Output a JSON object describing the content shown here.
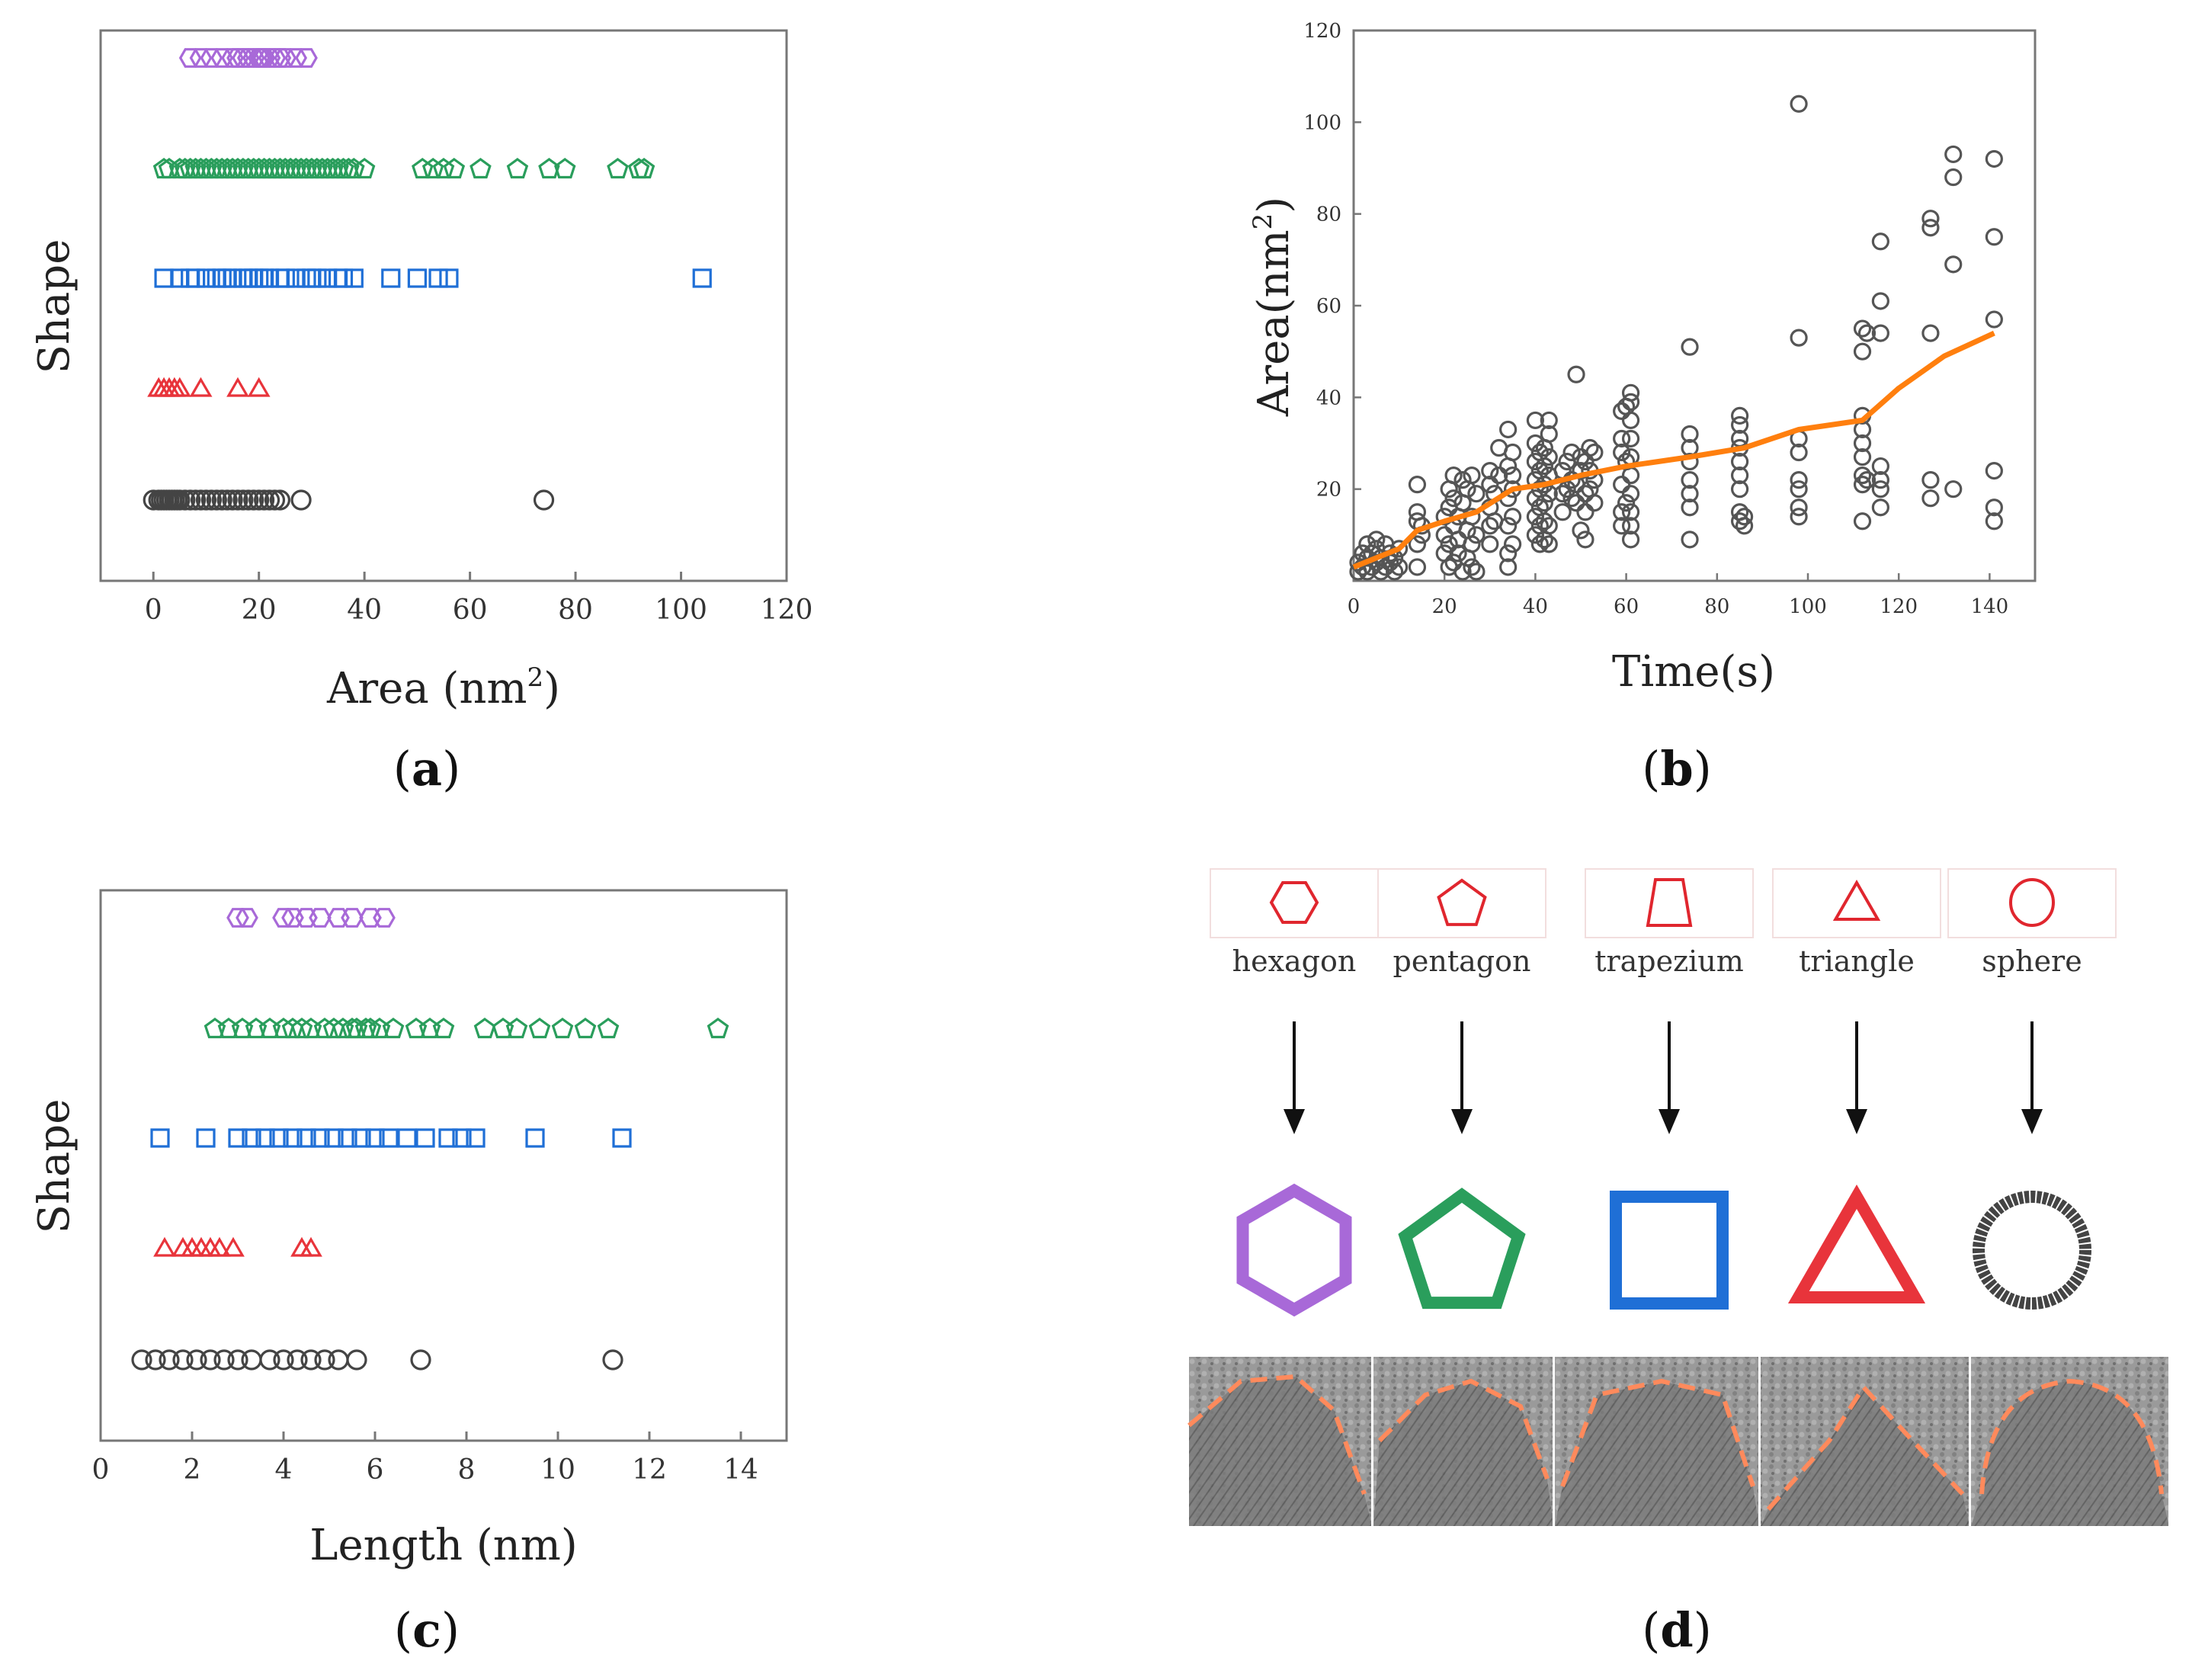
{
  "colors": {
    "hexagon": "#a869d8",
    "pentagon": "#2a9e5c",
    "square": "#1f6fd6",
    "triangle": "#e8343b",
    "sphere": "#444444",
    "trend": "#ff7f0e",
    "diagram_outline": "#e0262e"
  },
  "panel_labels": {
    "a": "a",
    "b": "b",
    "c": "c",
    "d": "d"
  },
  "chart_data": [
    {
      "id": "a",
      "type": "scatter",
      "title": "",
      "xlabel": "Area (nm",
      "xlabel_sup": "2",
      "xlabel_end": ")",
      "ylabel": "Shape",
      "xlim": [
        -10,
        120
      ],
      "xticks": [
        "0",
        "20",
        "40",
        "60",
        "80",
        "100",
        "120"
      ],
      "series": [
        {
          "name": "hexagon",
          "marker": "hexagon",
          "values": [
            7,
            9,
            11,
            13,
            15,
            16,
            17,
            18,
            19,
            20,
            20.5,
            21,
            22,
            23,
            24,
            25,
            27,
            29
          ]
        },
        {
          "name": "pentagon",
          "marker": "pentagon",
          "values": [
            2,
            3,
            5,
            6,
            7,
            8,
            9,
            10,
            11,
            12,
            13,
            14,
            15,
            16,
            17,
            18,
            19,
            20,
            21,
            22,
            23,
            24,
            25,
            26,
            27,
            28,
            29,
            30,
            31,
            32,
            33,
            34,
            35,
            36,
            37,
            38,
            40,
            51,
            53,
            55,
            57,
            62,
            69,
            75,
            78,
            88,
            92,
            93
          ]
        },
        {
          "name": "square",
          "marker": "square",
          "values": [
            2,
            5,
            7,
            8,
            10,
            12,
            13,
            14,
            15,
            17,
            18,
            19,
            20,
            21,
            22,
            24,
            25,
            27,
            29,
            30,
            31,
            33,
            35,
            36,
            38,
            45,
            50,
            54,
            56,
            104
          ]
        },
        {
          "name": "triangle",
          "marker": "triangle",
          "values": [
            1,
            2,
            3,
            4,
            5,
            9,
            16,
            20
          ]
        },
        {
          "name": "sphere",
          "marker": "circle",
          "values": [
            0,
            1,
            1.5,
            2,
            2.5,
            3,
            3.5,
            4,
            4.5,
            5,
            6,
            7,
            8,
            9,
            10,
            11,
            12,
            13,
            14,
            15,
            16,
            17,
            18,
            19,
            20,
            21,
            22,
            23,
            24,
            28,
            74
          ]
        }
      ]
    },
    {
      "id": "b",
      "type": "scatter",
      "title": "",
      "xlabel": "Time(s)",
      "ylabel": "Area(nm",
      "ylabel_sup": "2",
      "ylabel_end": ")",
      "xlim": [
        0,
        150
      ],
      "ylim": [
        0,
        120
      ],
      "xticks": [
        "0",
        "20",
        "40",
        "60",
        "80",
        "100",
        "120",
        "140"
      ],
      "yticks": [
        "20",
        "40",
        "60",
        "80",
        "100",
        "120"
      ],
      "points": [
        [
          1,
          2
        ],
        [
          1,
          4
        ],
        [
          2,
          3
        ],
        [
          2,
          6
        ],
        [
          3,
          2
        ],
        [
          3,
          5
        ],
        [
          3,
          8
        ],
        [
          4,
          3
        ],
        [
          4,
          6
        ],
        [
          5,
          4
        ],
        [
          5,
          7
        ],
        [
          5,
          9
        ],
        [
          6,
          2
        ],
        [
          6,
          5
        ],
        [
          7,
          3
        ],
        [
          7,
          8
        ],
        [
          8,
          4
        ],
        [
          8,
          6
        ],
        [
          9,
          2
        ],
        [
          9,
          5
        ],
        [
          10,
          3
        ],
        [
          10,
          7
        ],
        [
          14,
          3
        ],
        [
          14,
          8
        ],
        [
          14,
          13
        ],
        [
          14,
          15
        ],
        [
          14,
          21
        ],
        [
          15,
          10
        ],
        [
          15,
          12
        ],
        [
          20,
          6
        ],
        [
          20,
          10
        ],
        [
          20,
          14
        ],
        [
          21,
          3
        ],
        [
          21,
          8
        ],
        [
          21,
          16
        ],
        [
          21,
          20
        ],
        [
          22,
          4
        ],
        [
          22,
          12
        ],
        [
          22,
          18
        ],
        [
          22,
          23
        ],
        [
          23,
          6
        ],
        [
          23,
          9
        ],
        [
          23,
          14
        ],
        [
          24,
          2
        ],
        [
          24,
          17
        ],
        [
          24,
          22
        ],
        [
          25,
          5
        ],
        [
          25,
          11
        ],
        [
          25,
          20
        ],
        [
          26,
          3
        ],
        [
          26,
          8
        ],
        [
          26,
          14
        ],
        [
          26,
          23
        ],
        [
          27,
          2
        ],
        [
          27,
          10
        ],
        [
          27,
          19
        ],
        [
          30,
          8
        ],
        [
          30,
          12
        ],
        [
          30,
          16
        ],
        [
          30,
          21
        ],
        [
          30,
          24
        ],
        [
          31,
          13
        ],
        [
          31,
          19
        ],
        [
          32,
          23
        ],
        [
          32,
          29
        ],
        [
          34,
          3
        ],
        [
          34,
          6
        ],
        [
          34,
          12
        ],
        [
          34,
          18
        ],
        [
          34,
          25
        ],
        [
          34,
          33
        ],
        [
          35,
          8
        ],
        [
          35,
          14
        ],
        [
          35,
          20
        ],
        [
          35,
          23
        ],
        [
          35,
          28
        ],
        [
          40,
          10
        ],
        [
          40,
          14
        ],
        [
          40,
          18
        ],
        [
          40,
          22
        ],
        [
          40,
          26
        ],
        [
          40,
          30
        ],
        [
          40,
          35
        ],
        [
          41,
          8
        ],
        [
          41,
          12
        ],
        [
          41,
          16
        ],
        [
          41,
          20
        ],
        [
          41,
          24
        ],
        [
          41,
          28
        ],
        [
          42,
          9
        ],
        [
          42,
          13
        ],
        [
          42,
          17
        ],
        [
          42,
          21
        ],
        [
          42,
          25
        ],
        [
          42,
          29
        ],
        [
          43,
          8
        ],
        [
          43,
          12
        ],
        [
          43,
          19
        ],
        [
          43,
          23
        ],
        [
          43,
          27
        ],
        [
          43,
          32
        ],
        [
          43,
          35
        ],
        [
          46,
          15
        ],
        [
          46,
          19
        ],
        [
          46,
          24
        ],
        [
          47,
          20
        ],
        [
          47,
          26
        ],
        [
          48,
          18
        ],
        [
          48,
          22
        ],
        [
          48,
          28
        ],
        [
          49,
          17
        ],
        [
          49,
          21
        ],
        [
          49,
          45
        ],
        [
          50,
          11
        ],
        [
          50,
          24
        ],
        [
          50,
          27
        ],
        [
          51,
          9
        ],
        [
          51,
          15
        ],
        [
          51,
          19
        ],
        [
          51,
          26
        ],
        [
          52,
          20
        ],
        [
          52,
          24
        ],
        [
          52,
          29
        ],
        [
          53,
          17
        ],
        [
          53,
          22
        ],
        [
          53,
          28
        ],
        [
          59,
          12
        ],
        [
          59,
          15
        ],
        [
          59,
          21
        ],
        [
          59,
          28
        ],
        [
          59,
          31
        ],
        [
          59,
          37
        ],
        [
          60,
          17
        ],
        [
          60,
          26
        ],
        [
          60,
          38
        ],
        [
          61,
          9
        ],
        [
          61,
          12
        ],
        [
          61,
          15
        ],
        [
          61,
          19
        ],
        [
          61,
          23
        ],
        [
          61,
          27
        ],
        [
          61,
          31
        ],
        [
          61,
          35
        ],
        [
          61,
          39
        ],
        [
          61,
          41
        ],
        [
          74,
          9
        ],
        [
          74,
          16
        ],
        [
          74,
          19
        ],
        [
          74,
          22
        ],
        [
          74,
          26
        ],
        [
          74,
          29
        ],
        [
          74,
          32
        ],
        [
          74,
          51
        ],
        [
          85,
          13
        ],
        [
          85,
          15
        ],
        [
          85,
          20
        ],
        [
          85,
          23
        ],
        [
          85,
          26
        ],
        [
          85,
          29
        ],
        [
          85,
          31
        ],
        [
          85,
          34
        ],
        [
          85,
          36
        ],
        [
          86,
          12
        ],
        [
          86,
          14
        ],
        [
          98,
          14
        ],
        [
          98,
          16
        ],
        [
          98,
          20
        ],
        [
          98,
          22
        ],
        [
          98,
          28
        ],
        [
          98,
          31
        ],
        [
          98,
          53
        ],
        [
          98,
          104
        ],
        [
          112,
          13
        ],
        [
          112,
          21
        ],
        [
          112,
          23
        ],
        [
          112,
          27
        ],
        [
          112,
          30
        ],
        [
          112,
          33
        ],
        [
          112,
          36
        ],
        [
          112,
          50
        ],
        [
          112,
          55
        ],
        [
          113,
          22
        ],
        [
          113,
          54
        ],
        [
          116,
          16
        ],
        [
          116,
          20
        ],
        [
          116,
          22
        ],
        [
          116,
          25
        ],
        [
          116,
          54
        ],
        [
          116,
          61
        ],
        [
          116,
          74
        ],
        [
          127,
          18
        ],
        [
          127,
          22
        ],
        [
          127,
          54
        ],
        [
          127,
          77
        ],
        [
          127,
          79
        ],
        [
          132,
          20
        ],
        [
          132,
          69
        ],
        [
          132,
          88
        ],
        [
          132,
          93
        ],
        [
          141,
          13
        ],
        [
          141,
          16
        ],
        [
          141,
          24
        ],
        [
          141,
          57
        ],
        [
          141,
          75
        ],
        [
          141,
          92
        ]
      ],
      "trend": [
        [
          0,
          3
        ],
        [
          5,
          5
        ],
        [
          10,
          7
        ],
        [
          14,
          11
        ],
        [
          20,
          13
        ],
        [
          27,
          15
        ],
        [
          35,
          20
        ],
        [
          42,
          21
        ],
        [
          50,
          23
        ],
        [
          60,
          25
        ],
        [
          74,
          27
        ],
        [
          86,
          29
        ],
        [
          98,
          33
        ],
        [
          112,
          35
        ],
        [
          120,
          42
        ],
        [
          130,
          49
        ],
        [
          141,
          54
        ]
      ]
    },
    {
      "id": "c",
      "type": "scatter",
      "title": "",
      "xlabel": "Length (nm)",
      "ylabel": "Shape",
      "xlim": [
        0,
        15
      ],
      "xticks": [
        "0",
        "2",
        "4",
        "6",
        "8",
        "10",
        "12",
        "14"
      ],
      "series": [
        {
          "name": "hexagon",
          "marker": "hexagon",
          "values": [
            3.0,
            3.2,
            4.0,
            4.2,
            4.5,
            4.8,
            5.2,
            5.5,
            5.9,
            6.2
          ]
        },
        {
          "name": "pentagon",
          "marker": "pentagon",
          "values": [
            2.5,
            2.8,
            3.1,
            3.4,
            3.7,
            4.0,
            4.2,
            4.4,
            4.6,
            4.9,
            5.1,
            5.3,
            5.5,
            5.6,
            5.8,
            5.9,
            6.1,
            6.4,
            6.9,
            7.2,
            7.5,
            8.4,
            8.8,
            9.1,
            9.6,
            10.1,
            10.6,
            11.1,
            13.5
          ]
        },
        {
          "name": "square",
          "marker": "square",
          "values": [
            1.3,
            2.3,
            3.0,
            3.3,
            3.6,
            3.9,
            4.2,
            4.5,
            4.8,
            5.1,
            5.4,
            5.7,
            6.0,
            6.3,
            6.7,
            7.1,
            7.6,
            7.9,
            8.2,
            9.5,
            11.4
          ]
        },
        {
          "name": "triangle",
          "marker": "triangle",
          "values": [
            1.4,
            1.8,
            2.0,
            2.2,
            2.4,
            2.6,
            2.9,
            4.4,
            4.6
          ]
        },
        {
          "name": "sphere",
          "marker": "circle",
          "values": [
            0.9,
            1.2,
            1.5,
            1.8,
            2.1,
            2.4,
            2.7,
            3.0,
            3.3,
            3.7,
            4.0,
            4.3,
            4.6,
            4.9,
            5.2,
            5.6,
            7.0,
            11.2
          ]
        }
      ]
    }
  ],
  "diagram": {
    "shapes": [
      {
        "key": "hexagon",
        "label": "hexagon",
        "fitted_color": "#a869d8"
      },
      {
        "key": "pentagon",
        "label": "pentagon",
        "fitted_color": "#2a9e5c"
      },
      {
        "key": "trapezium",
        "label": "trapezium",
        "fitted_color": "#1f6fd6"
      },
      {
        "key": "triangle",
        "label": "triangle",
        "fitted_color": "#e8343b"
      },
      {
        "key": "sphere",
        "label": "sphere",
        "fitted_color": "#444444"
      }
    ]
  }
}
